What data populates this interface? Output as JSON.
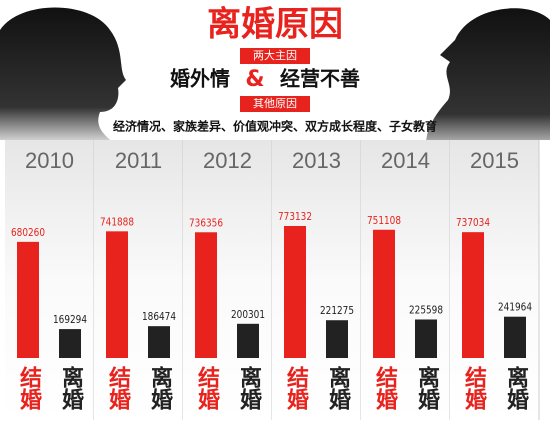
{
  "chart_data": {
    "type": "bar",
    "title": "离婚原因",
    "main_causes_label": "两大主因",
    "main_causes": [
      "婚外情",
      "经营不善"
    ],
    "connector": "&",
    "other_causes_label": "其他原因",
    "other_causes": "经济情况、家族差异、价值观冲突、双方成长程度、子女教育",
    "categories": [
      "2010",
      "2011",
      "2012",
      "2013",
      "2014",
      "2015"
    ],
    "series": [
      {
        "name": "结婚",
        "color": "#e8231e",
        "values": [
          680260,
          741888,
          736356,
          773132,
          751108,
          737034
        ]
      },
      {
        "name": "离婚",
        "color": "#222222",
        "values": [
          169294,
          186474,
          200301,
          221275,
          225598,
          241964
        ]
      }
    ]
  }
}
